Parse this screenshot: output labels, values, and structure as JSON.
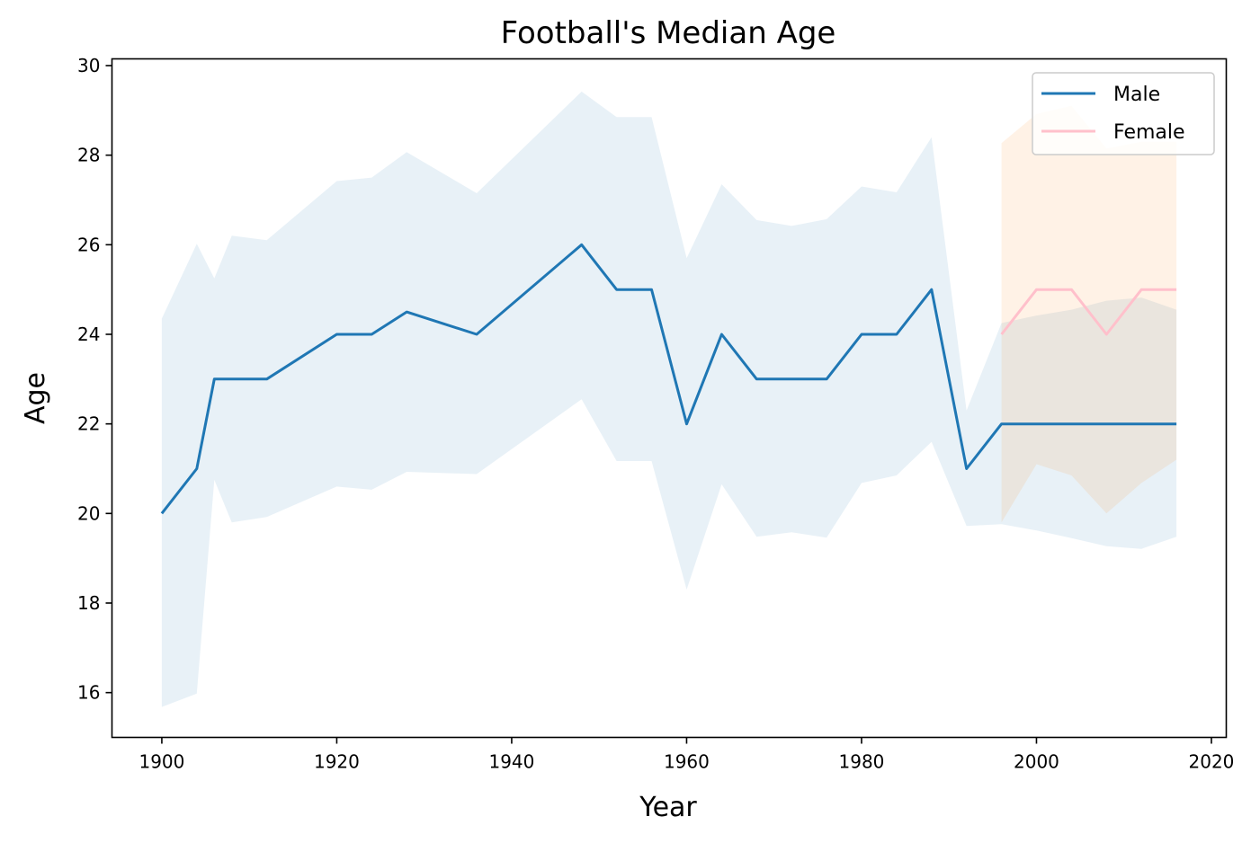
{
  "chart_data": {
    "type": "line",
    "title": "Football's Median Age",
    "xlabel": "Year",
    "ylabel": "Age",
    "xlim": [
      1894.3,
      2021.7
    ],
    "ylim": [
      15.0,
      30.15
    ],
    "xticks": [
      1900,
      1920,
      1940,
      1960,
      1980,
      2000,
      2020
    ],
    "yticks": [
      16,
      18,
      20,
      22,
      24,
      26,
      28,
      30
    ],
    "grid": false,
    "legend_position": "top-right",
    "series": [
      {
        "name": "Male",
        "color": "#1f77b4",
        "band_color": "#1f77b4",
        "x": [
          1900,
          1904,
          1906,
          1908,
          1912,
          1920,
          1924,
          1928,
          1936,
          1948,
          1952,
          1956,
          1960,
          1964,
          1968,
          1972,
          1976,
          1980,
          1984,
          1988,
          1992,
          1996,
          2000,
          2004,
          2008,
          2012,
          2016
        ],
        "y": [
          20,
          21,
          23,
          23,
          23,
          24,
          24,
          24.5,
          24,
          26,
          25,
          25,
          22,
          24,
          23,
          23,
          23,
          24,
          24,
          25,
          21,
          22,
          22,
          22,
          22,
          22,
          22
        ],
        "upper": [
          24.35,
          26.02,
          25.25,
          26.2,
          26.1,
          27.42,
          27.5,
          28.07,
          27.15,
          29.42,
          28.85,
          28.85,
          25.7,
          27.35,
          26.55,
          26.42,
          26.57,
          27.3,
          27.17,
          28.4,
          22.3,
          24.25,
          24.42,
          24.55,
          24.75,
          24.82,
          24.55
        ],
        "lower": [
          15.68,
          15.98,
          20.75,
          19.8,
          19.92,
          20.6,
          20.53,
          20.93,
          20.88,
          22.55,
          21.17,
          21.17,
          18.3,
          20.65,
          19.48,
          19.58,
          19.46,
          20.68,
          20.85,
          21.6,
          19.72,
          19.76,
          19.62,
          19.45,
          19.27,
          19.21,
          19.48
        ]
      },
      {
        "name": "Female",
        "color": "#ffc0cb",
        "band_color": "#ff7f0e",
        "x": [
          1996,
          2000,
          2004,
          2008,
          2012,
          2016
        ],
        "y": [
          24,
          25,
          25,
          24,
          25,
          25
        ],
        "upper": [
          28.27,
          28.92,
          29.1,
          28.15,
          28.3,
          28.3
        ],
        "lower": [
          19.8,
          21.1,
          20.85,
          20.0,
          20.68,
          21.2
        ]
      }
    ]
  }
}
